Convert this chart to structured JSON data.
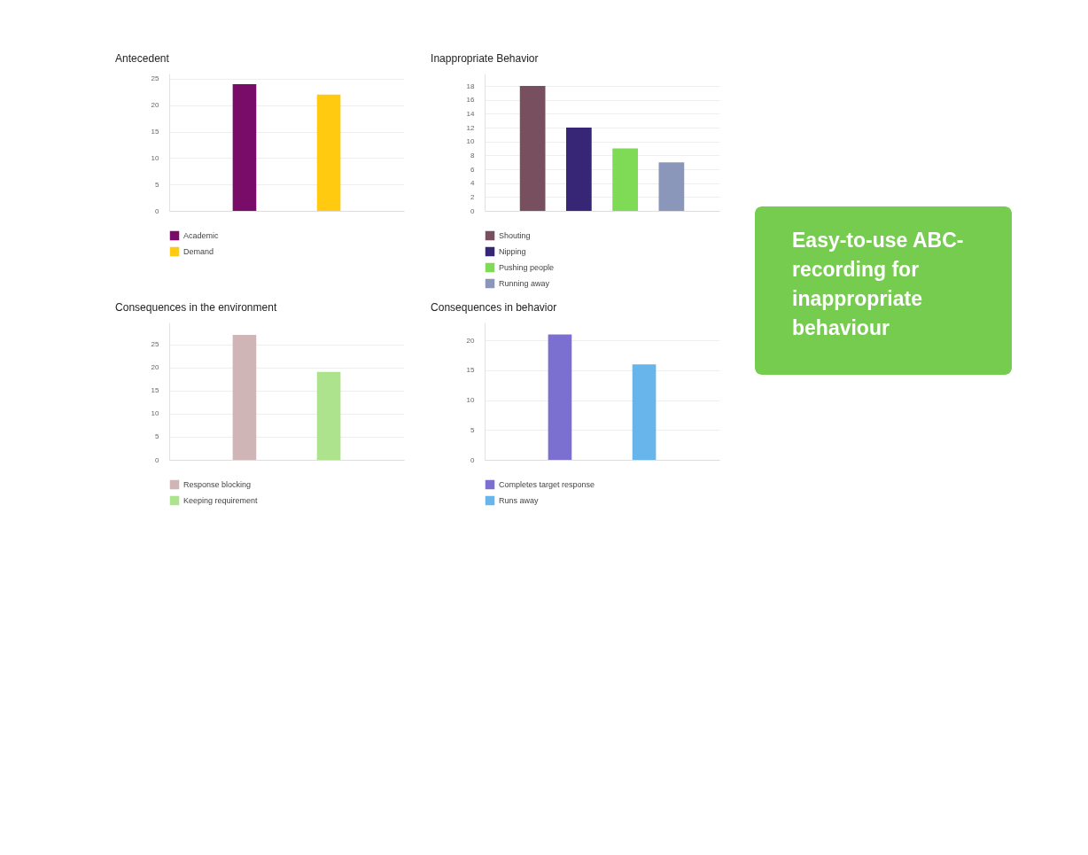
{
  "chart_data": [
    {
      "type": "bar",
      "title": "Antecedent",
      "categories": [
        null
      ],
      "series": [
        {
          "name": "Academic",
          "color": "#7a0c69",
          "values": [
            24
          ]
        },
        {
          "name": "Demand",
          "color": "#ffca0f",
          "values": [
            22
          ]
        }
      ],
      "ylim": [
        0,
        26
      ],
      "yticks": [
        0,
        5,
        10,
        15,
        20,
        25
      ],
      "grid": "y",
      "legend": "bottom",
      "tick_labels": "y"
    },
    {
      "type": "bar",
      "title": "Inappropriate Behavior",
      "categories": [
        null
      ],
      "series": [
        {
          "name": "Shouting",
          "color": "#774f5f",
          "values": [
            18
          ]
        },
        {
          "name": "Nipping",
          "color": "#372675",
          "values": [
            12
          ]
        },
        {
          "name": "Pushing people",
          "color": "#7fda56",
          "values": [
            9
          ]
        },
        {
          "name": "Running away",
          "color": "#8a97ba",
          "values": [
            7
          ]
        }
      ],
      "ylim": [
        0,
        19.8
      ],
      "yticks": [
        0,
        2,
        4,
        6,
        8,
        10,
        12,
        14,
        16,
        18
      ],
      "grid": "y",
      "legend": "bottom",
      "tick_labels": "y"
    },
    {
      "type": "bar",
      "title": "Consequences in the environment",
      "categories": [
        null
      ],
      "series": [
        {
          "name": "Response blocking",
          "color": "#cfb5b5",
          "values": [
            27
          ]
        },
        {
          "name": "Keeping requirement",
          "color": "#ade38c",
          "values": [
            19
          ]
        }
      ],
      "ylim": [
        0,
        29.7
      ],
      "yticks": [
        0,
        5,
        10,
        15,
        20,
        25
      ],
      "grid": "y",
      "legend": "bottom",
      "tick_labels": "y"
    },
    {
      "type": "bar",
      "title": "Consequences in behavior",
      "categories": [
        null
      ],
      "series": [
        {
          "name": "Completes target response",
          "color": "#7b70cf",
          "values": [
            21
          ]
        },
        {
          "name": "Runs away",
          "color": "#68b5ec",
          "values": [
            16
          ]
        }
      ],
      "ylim": [
        0,
        23
      ],
      "yticks": [
        0,
        5,
        10,
        15,
        20
      ],
      "grid": "y",
      "legend": "bottom",
      "tick_labels": "y"
    },
    {
      "type": "other",
      "title": "Easy-to-use ABC-recording for inappropriate behaviour"
    }
  ]
}
